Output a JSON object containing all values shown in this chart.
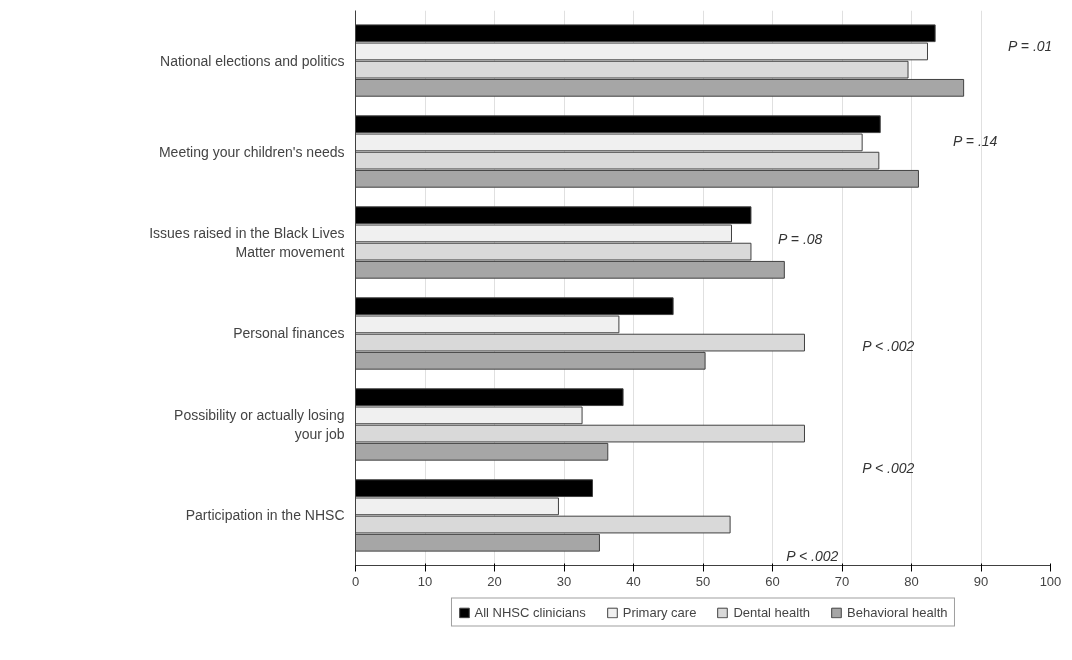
{
  "chart_data": {
    "type": "bar",
    "orientation": "horizontal",
    "categories": [
      "National elections and politics",
      "Meeting your children's needs",
      "Issues raised in the Black Lives Matter movement",
      "Personal finances",
      "Possibility or actually losing your job",
      "Participation in the NHSC"
    ],
    "series": [
      {
        "name": "All NHSC clinicians",
        "color": "#000000",
        "values": [
          83.4,
          75.5,
          56.9,
          45.7,
          38.5,
          34.1
        ]
      },
      {
        "name": "Primary care",
        "color": "#f0f0f0",
        "values": [
          82.3,
          72.9,
          54.1,
          37.9,
          32.6,
          29.2
        ]
      },
      {
        "name": "Dental health",
        "color": "#d9d9d9",
        "values": [
          79.5,
          75.3,
          56.9,
          64.6,
          64.6,
          53.9
        ]
      },
      {
        "name": "Behavioral health",
        "color": "#a6a6a6",
        "values": [
          87.5,
          81.0,
          61.7,
          50.3,
          36.3,
          35.1
        ]
      }
    ],
    "xlim": [
      0,
      100
    ],
    "xticks": [
      0,
      10,
      20,
      30,
      40,
      50,
      60,
      70,
      80,
      90,
      100
    ],
    "grid": "x",
    "legend": "bottom",
    "annotations": [
      "P = .01",
      "P = .14",
      "P = .08",
      "P < .002",
      "P < .002",
      "P < .002"
    ]
  }
}
